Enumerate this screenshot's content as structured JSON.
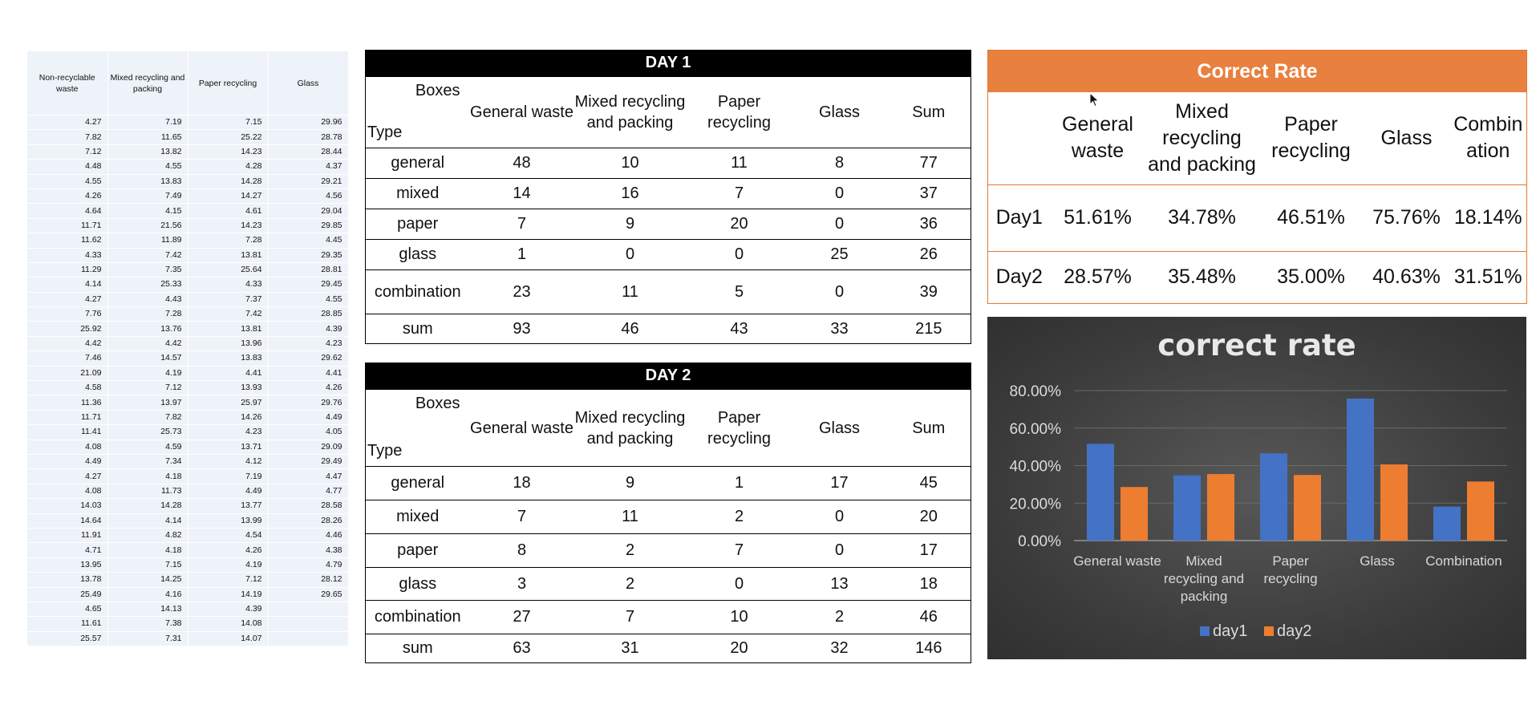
{
  "sheet": {
    "headers": [
      "Non-recyclable waste",
      "Mixed recycling and packing",
      "Paper recycling",
      "Glass"
    ],
    "rows": [
      [
        "4.27",
        "7.19",
        "7.15",
        "29.96"
      ],
      [
        "7.82",
        "11.65",
        "25.22",
        "28.78"
      ],
      [
        "7.12",
        "13.82",
        "14.23",
        "28.44"
      ],
      [
        "4.48",
        "4.55",
        "4.28",
        "4.37"
      ],
      [
        "4.55",
        "13.83",
        "14.28",
        "29.21"
      ],
      [
        "4.26",
        "7.49",
        "14.27",
        "4.56"
      ],
      [
        "4.64",
        "4.15",
        "4.61",
        "29.04"
      ],
      [
        "11.71",
        "21.56",
        "14.23",
        "29.85"
      ],
      [
        "11.62",
        "11.89",
        "7.28",
        "4.45"
      ],
      [
        "4.33",
        "7.42",
        "13.81",
        "29.35"
      ],
      [
        "11.29",
        "7.35",
        "25.64",
        "28.81"
      ],
      [
        "4.14",
        "25.33",
        "4.33",
        "29.45"
      ],
      [
        "4.27",
        "4.43",
        "7.37",
        "4.55"
      ],
      [
        "7.76",
        "7.28",
        "7.42",
        "28.85"
      ],
      [
        "25.92",
        "13.76",
        "13.81",
        "4.39"
      ],
      [
        "4.42",
        "4.42",
        "13.96",
        "4.23"
      ],
      [
        "7.46",
        "14.57",
        "13.83",
        "29.62"
      ],
      [
        "21.09",
        "4.19",
        "4.41",
        "4.41"
      ],
      [
        "4.58",
        "7.12",
        "13.93",
        "4.26"
      ],
      [
        "11.36",
        "13.97",
        "25.97",
        "29.76"
      ],
      [
        "11.71",
        "7.82",
        "14.26",
        "4.49"
      ],
      [
        "11.41",
        "25.73",
        "4.23",
        "4.05"
      ],
      [
        "4.08",
        "4.59",
        "13.71",
        "29.09"
      ],
      [
        "4.49",
        "7.34",
        "4.12",
        "29.49"
      ],
      [
        "4.27",
        "4.18",
        "7.19",
        "4.47"
      ],
      [
        "4.08",
        "11.73",
        "4.49",
        "4.77"
      ],
      [
        "14.03",
        "14.28",
        "13.77",
        "28.58"
      ],
      [
        "14.64",
        "4.14",
        "13.99",
        "28.26"
      ],
      [
        "11.91",
        "4.82",
        "4.54",
        "4.46"
      ],
      [
        "4.71",
        "4.18",
        "4.26",
        "4.38"
      ],
      [
        "13.95",
        "7.15",
        "4.19",
        "4.79"
      ],
      [
        "13.78",
        "14.25",
        "7.12",
        "28.12"
      ],
      [
        "25.49",
        "4.16",
        "14.19",
        "29.65"
      ],
      [
        "4.65",
        "14.13",
        "4.39",
        ""
      ],
      [
        "11.61",
        "7.38",
        "14.08",
        ""
      ],
      [
        "25.57",
        "7.31",
        "14.07",
        ""
      ]
    ]
  },
  "day1": {
    "title": "DAY 1",
    "corner_top": "Boxes",
    "corner_bottom": "Type",
    "columns": [
      "General waste",
      "Mixed recycling and packing",
      "Paper recycling",
      "Glass",
      "Sum"
    ],
    "rows": [
      [
        "general",
        "48",
        "10",
        "11",
        "8",
        "77"
      ],
      [
        "mixed",
        "14",
        "16",
        "7",
        "0",
        "37"
      ],
      [
        "paper",
        "7",
        "9",
        "20",
        "0",
        "36"
      ],
      [
        "glass",
        "1",
        "0",
        "0",
        "25",
        "26"
      ],
      [
        "combination",
        "23",
        "11",
        "5",
        "0",
        "39"
      ],
      [
        "sum",
        "93",
        "46",
        "43",
        "33",
        "215"
      ]
    ]
  },
  "day2": {
    "title": "DAY 2",
    "corner_top": "Boxes",
    "corner_bottom": "Type",
    "columns": [
      "General waste",
      "Mixed recycling and packing",
      "Paper recycling",
      "Glass",
      "Sum"
    ],
    "rows": [
      [
        "general",
        "18",
        "9",
        "1",
        "17",
        "45"
      ],
      [
        "mixed",
        "7",
        "11",
        "2",
        "0",
        "20"
      ],
      [
        "paper",
        "8",
        "2",
        "7",
        "0",
        "17"
      ],
      [
        "glass",
        "3",
        "2",
        "0",
        "13",
        "18"
      ],
      [
        "combination",
        "27",
        "7",
        "10",
        "2",
        "46"
      ],
      [
        "sum",
        "63",
        "31",
        "20",
        "32",
        "146"
      ]
    ]
  },
  "rate": {
    "title": "Correct Rate",
    "columns": [
      "General waste",
      "Mixed recycling and packing",
      "Paper recycling",
      "Glass",
      "Combin ation"
    ],
    "rows": [
      [
        "Day1",
        "51.61%",
        "34.78%",
        "46.51%",
        "75.76%",
        "18.14%"
      ],
      [
        "Day2",
        "28.57%",
        "35.48%",
        "35.00%",
        "40.63%",
        "31.51%"
      ]
    ]
  },
  "chart_data": {
    "type": "bar",
    "title": "correct rate",
    "categories": [
      "General waste",
      "Mixed recycling and packing",
      "Paper recycling",
      "Glass",
      "Combination"
    ],
    "series": [
      {
        "name": "day1",
        "values": [
          51.61,
          34.78,
          46.51,
          75.76,
          18.14
        ],
        "color": "#4472c4"
      },
      {
        "name": "day2",
        "values": [
          28.57,
          35.48,
          35.0,
          40.63,
          31.51
        ],
        "color": "#ed7d31"
      }
    ],
    "yticks": [
      "0.00%",
      "20.00%",
      "40.00%",
      "60.00%",
      "80.00%"
    ],
    "ylim": [
      0,
      80
    ],
    "grid": true,
    "legend_position": "bottom"
  },
  "colors": {
    "rate_header": "#e8803f",
    "chart_background": "#3a3a3a"
  }
}
